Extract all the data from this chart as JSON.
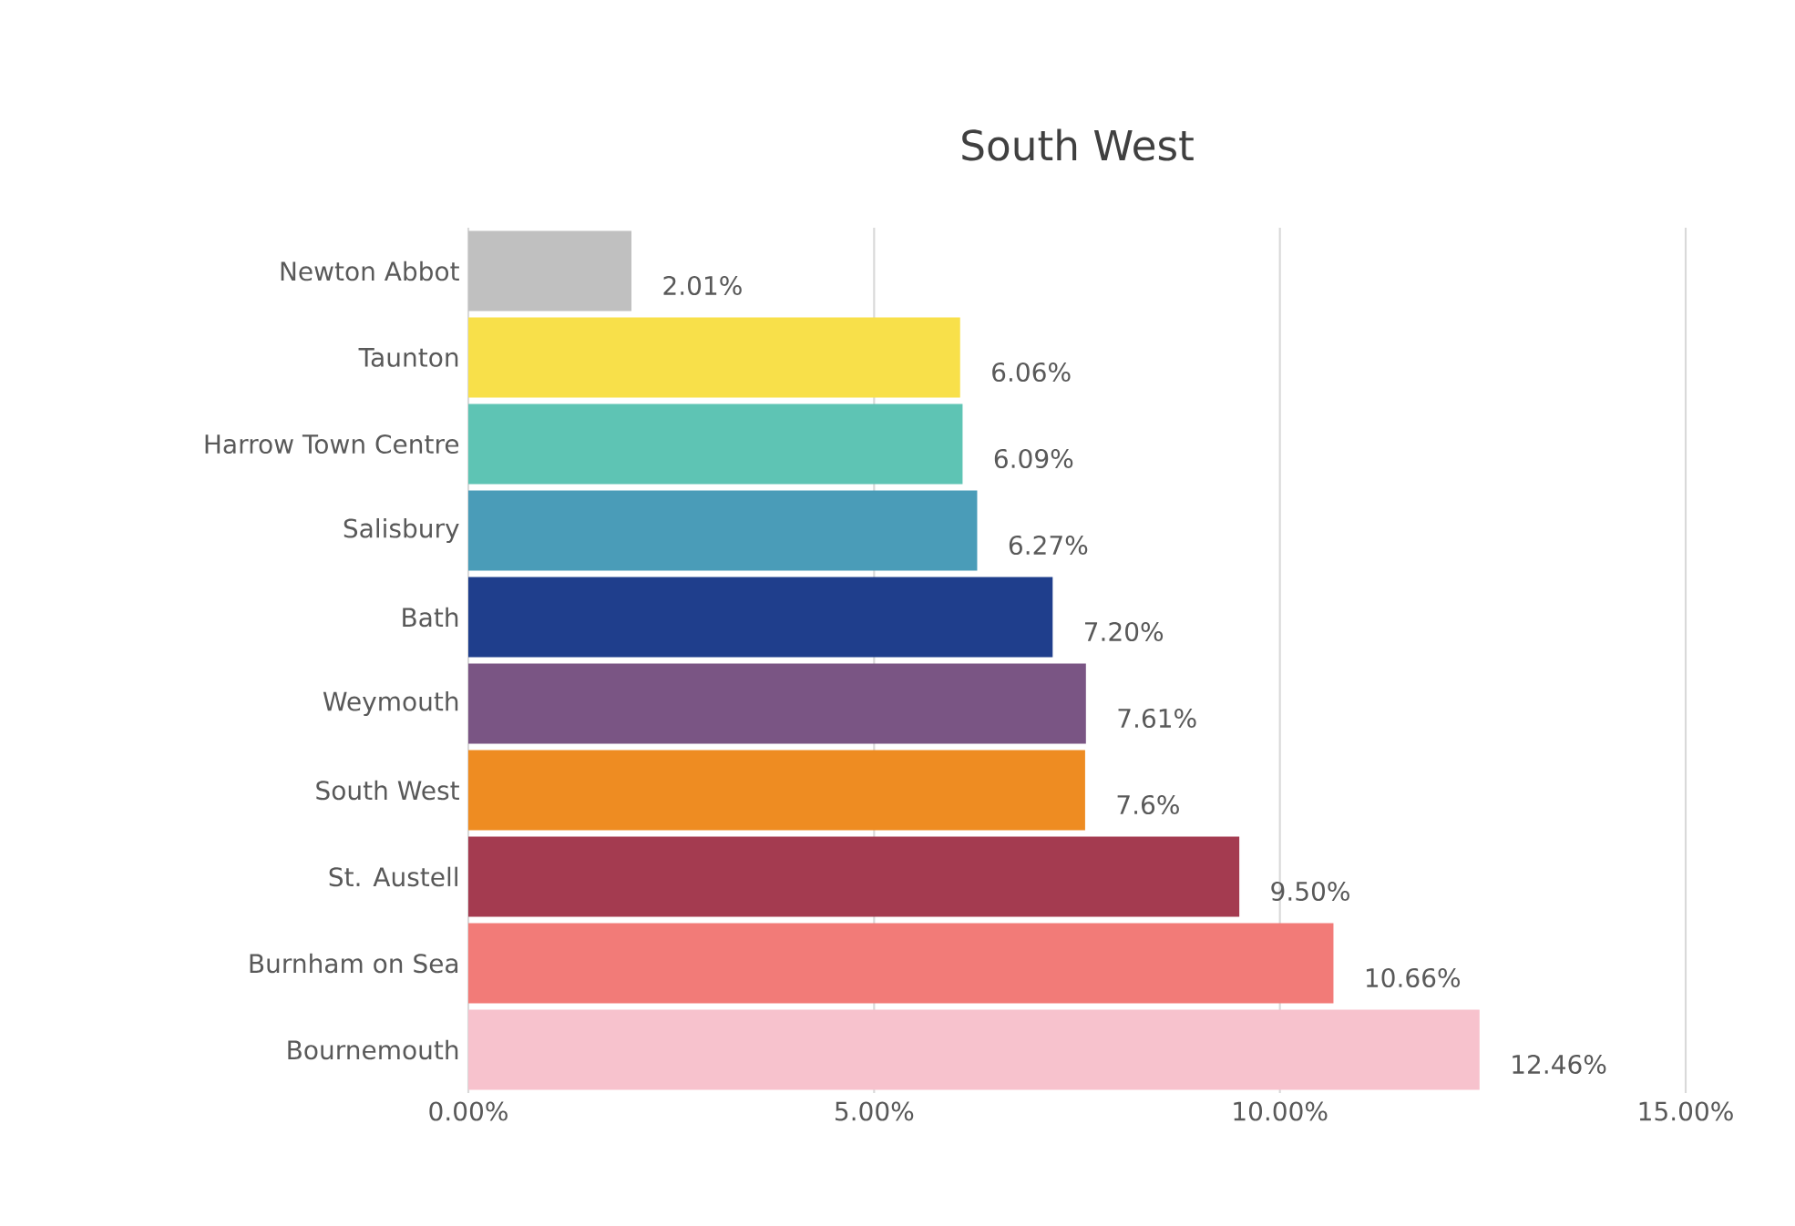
{
  "chart_data": {
    "type": "bar",
    "orientation": "horizontal",
    "title": "South West",
    "categories": [
      "Newton Abbot",
      "Taunton",
      "Harrow Town Centre",
      "Salisbury",
      "Bath",
      "Weymouth",
      "South West",
      "St. Austell",
      "Burnham on Sea",
      "Bournemouth"
    ],
    "values": [
      2.01,
      6.06,
      6.09,
      6.27,
      7.2,
      7.61,
      7.6,
      9.5,
      10.66,
      12.46
    ],
    "value_labels": [
      "2.01%",
      "6.06%",
      "6.09%",
      "6.27%",
      "7.20%",
      "7.61%",
      "7.6%",
      "9.50%",
      "10.66%",
      "12.46%"
    ],
    "colors": [
      "#c0c0c0",
      "#f8e04a",
      "#5ec4b4",
      "#4a9cb8",
      "#1f3e8c",
      "#7a5584",
      "#ee8c22",
      "#a43b50",
      "#f27b78",
      "#f7c2cd"
    ],
    "xlim": [
      0,
      15
    ],
    "xticks": [
      {
        "value": 0,
        "label": "0.00%"
      },
      {
        "value": 5,
        "label": "5.00%"
      },
      {
        "value": 10,
        "label": "10.00%"
      },
      {
        "value": 15,
        "label": "15.00%"
      }
    ],
    "grid": "x"
  }
}
